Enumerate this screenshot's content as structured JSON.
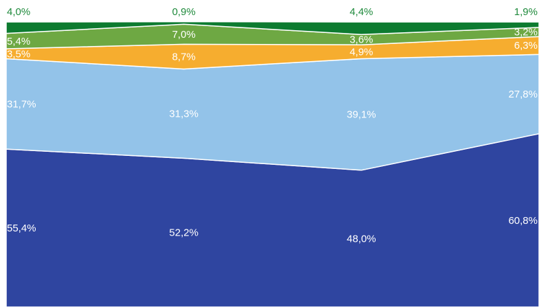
{
  "chart_data": {
    "type": "area",
    "stacked": true,
    "normalized": true,
    "x_count": 4,
    "ylim": [
      0,
      100
    ],
    "grid": false,
    "legend": "none",
    "series": [
      {
        "values": [
          55.4,
          52.2,
          48.0,
          60.8
        ],
        "labels": [
          "55,4%",
          "52,2%",
          "48,0%",
          "60,8%"
        ],
        "color": "#2f45a0",
        "label_color": "#ffffff"
      },
      {
        "values": [
          31.7,
          31.3,
          39.1,
          27.8
        ],
        "labels": [
          "31,7%",
          "31,3%",
          "39,1%",
          "27,8%"
        ],
        "color": "#93c3e9",
        "label_color": "#ffffff"
      },
      {
        "values": [
          3.5,
          8.7,
          4.9,
          6.3
        ],
        "labels": [
          "3,5%",
          "8,7%",
          "4,9%",
          "6,3%"
        ],
        "color": "#f6ad2f",
        "label_color": "#ffffff"
      },
      {
        "values": [
          5.4,
          7.0,
          3.6,
          3.2
        ],
        "labels": [
          "5,4%",
          "7,0%",
          "3,6%",
          "3,2%"
        ],
        "color": "#6ea843",
        "label_color": "#ffffff"
      },
      {
        "values": [
          4.0,
          0.9,
          4.4,
          1.9
        ],
        "labels": [
          "4,0%",
          "0,9%",
          "4,4%",
          "1,9%"
        ],
        "color": "#0d7b30",
        "label_color": "#1f8a3c"
      }
    ]
  }
}
